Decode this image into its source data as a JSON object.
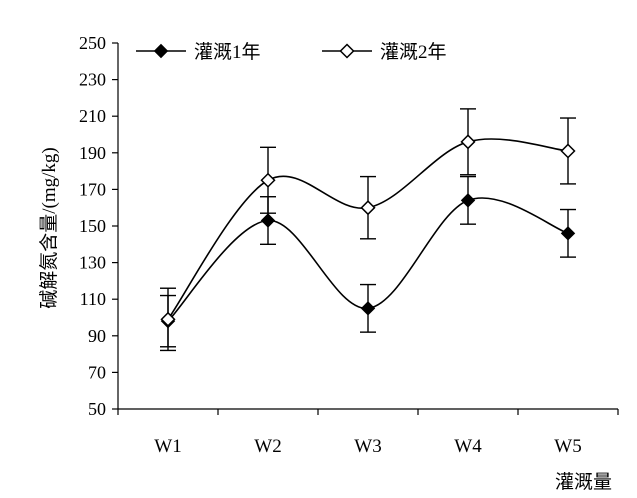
{
  "chart_data": {
    "type": "line",
    "title": "",
    "xlabel": "灌溉量",
    "ylabel": "碱解氮含量/(mg/kg)",
    "categories": [
      "W1",
      "W2",
      "W3",
      "W4",
      "W5"
    ],
    "ylim": [
      50,
      250
    ],
    "yticks": [
      50,
      70,
      90,
      110,
      130,
      150,
      170,
      190,
      210,
      230,
      250
    ],
    "grid": false,
    "legend_position": "top",
    "smooth_lines": true,
    "error_bars": true,
    "series": [
      {
        "name": "灌溉1年",
        "marker": "filled-diamond",
        "color": "#000000",
        "values": [
          98,
          153,
          105,
          164,
          146
        ],
        "errors": [
          14,
          13,
          13,
          13,
          13
        ]
      },
      {
        "name": "灌溉2年",
        "marker": "hollow-diamond",
        "color": "#000000",
        "values": [
          99,
          175,
          160,
          196,
          191
        ],
        "errors": [
          17,
          18,
          17,
          18,
          18
        ]
      }
    ]
  }
}
